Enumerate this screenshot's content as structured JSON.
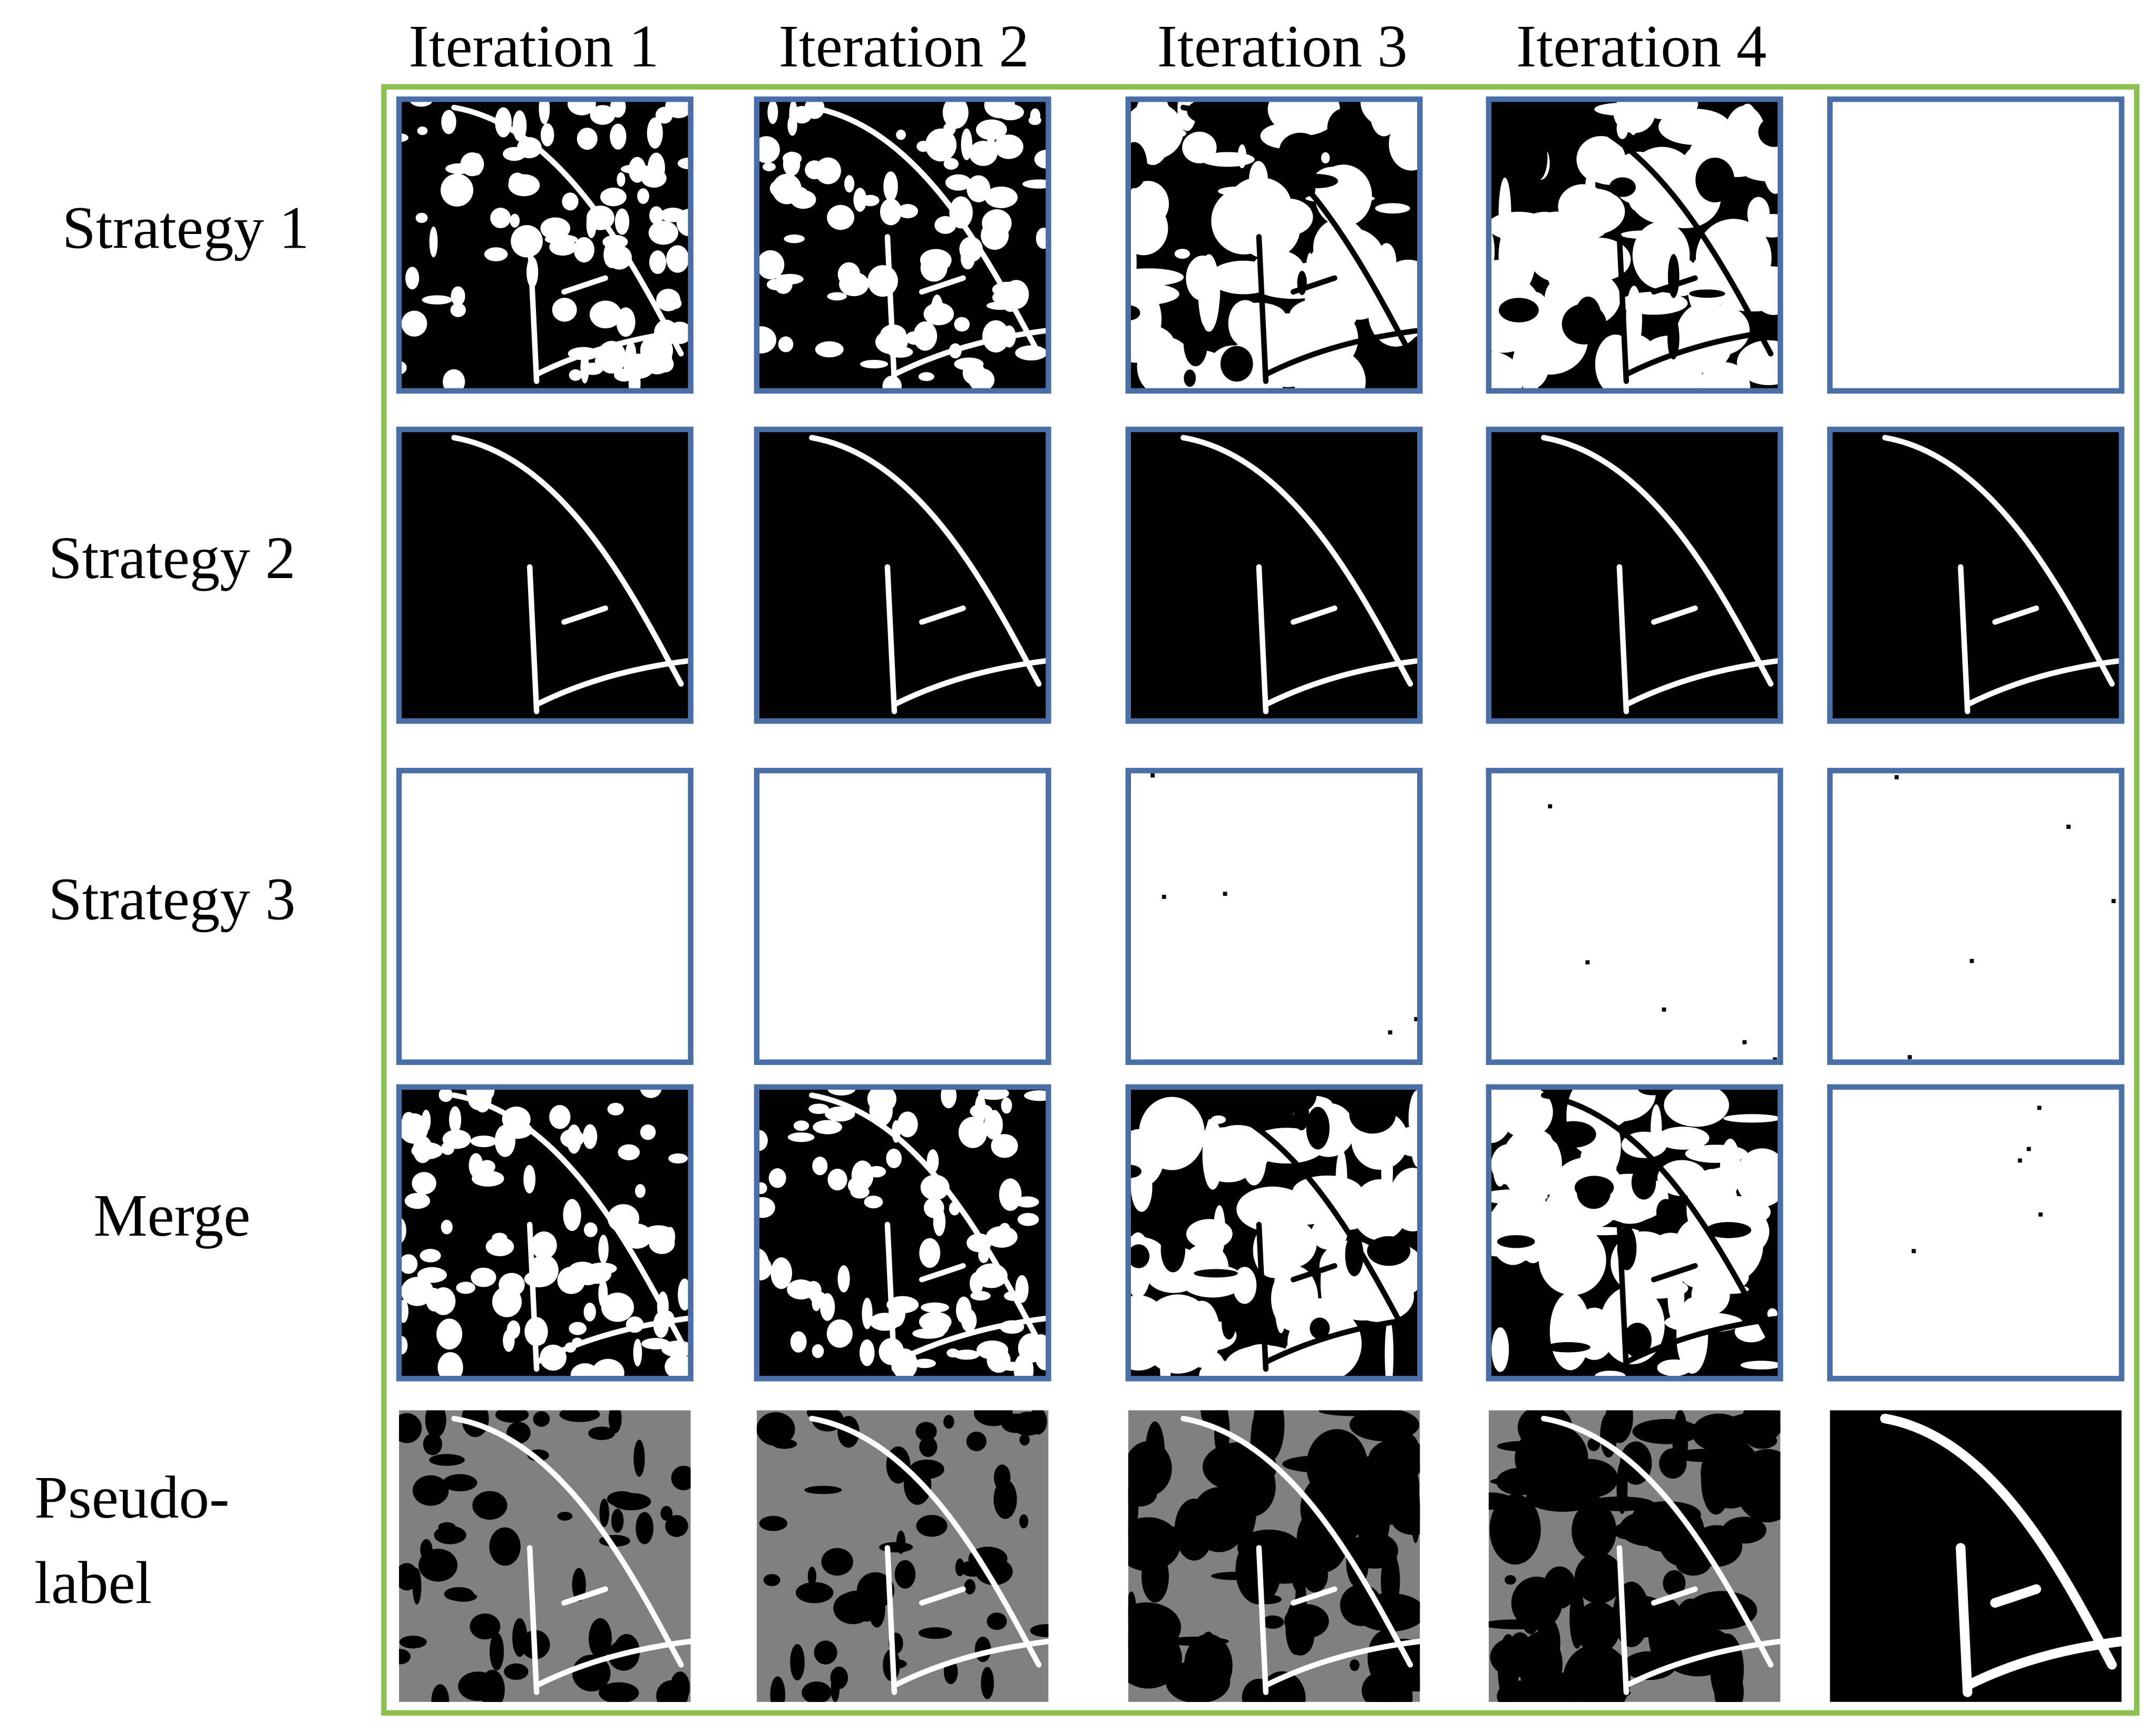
{
  "header": {
    "columns": [
      "Iteration 1",
      "Iteration 2",
      "Iteration 3",
      "Iteration 4"
    ]
  },
  "rows": [
    {
      "label": [
        "Strategy 1"
      ]
    },
    {
      "label": [
        "Strategy 2"
      ]
    },
    {
      "label": [
        "Strategy 3"
      ]
    },
    {
      "label": [
        "Merge"
      ]
    },
    {
      "label": [
        "Pseudo-",
        "label"
      ]
    }
  ]
}
